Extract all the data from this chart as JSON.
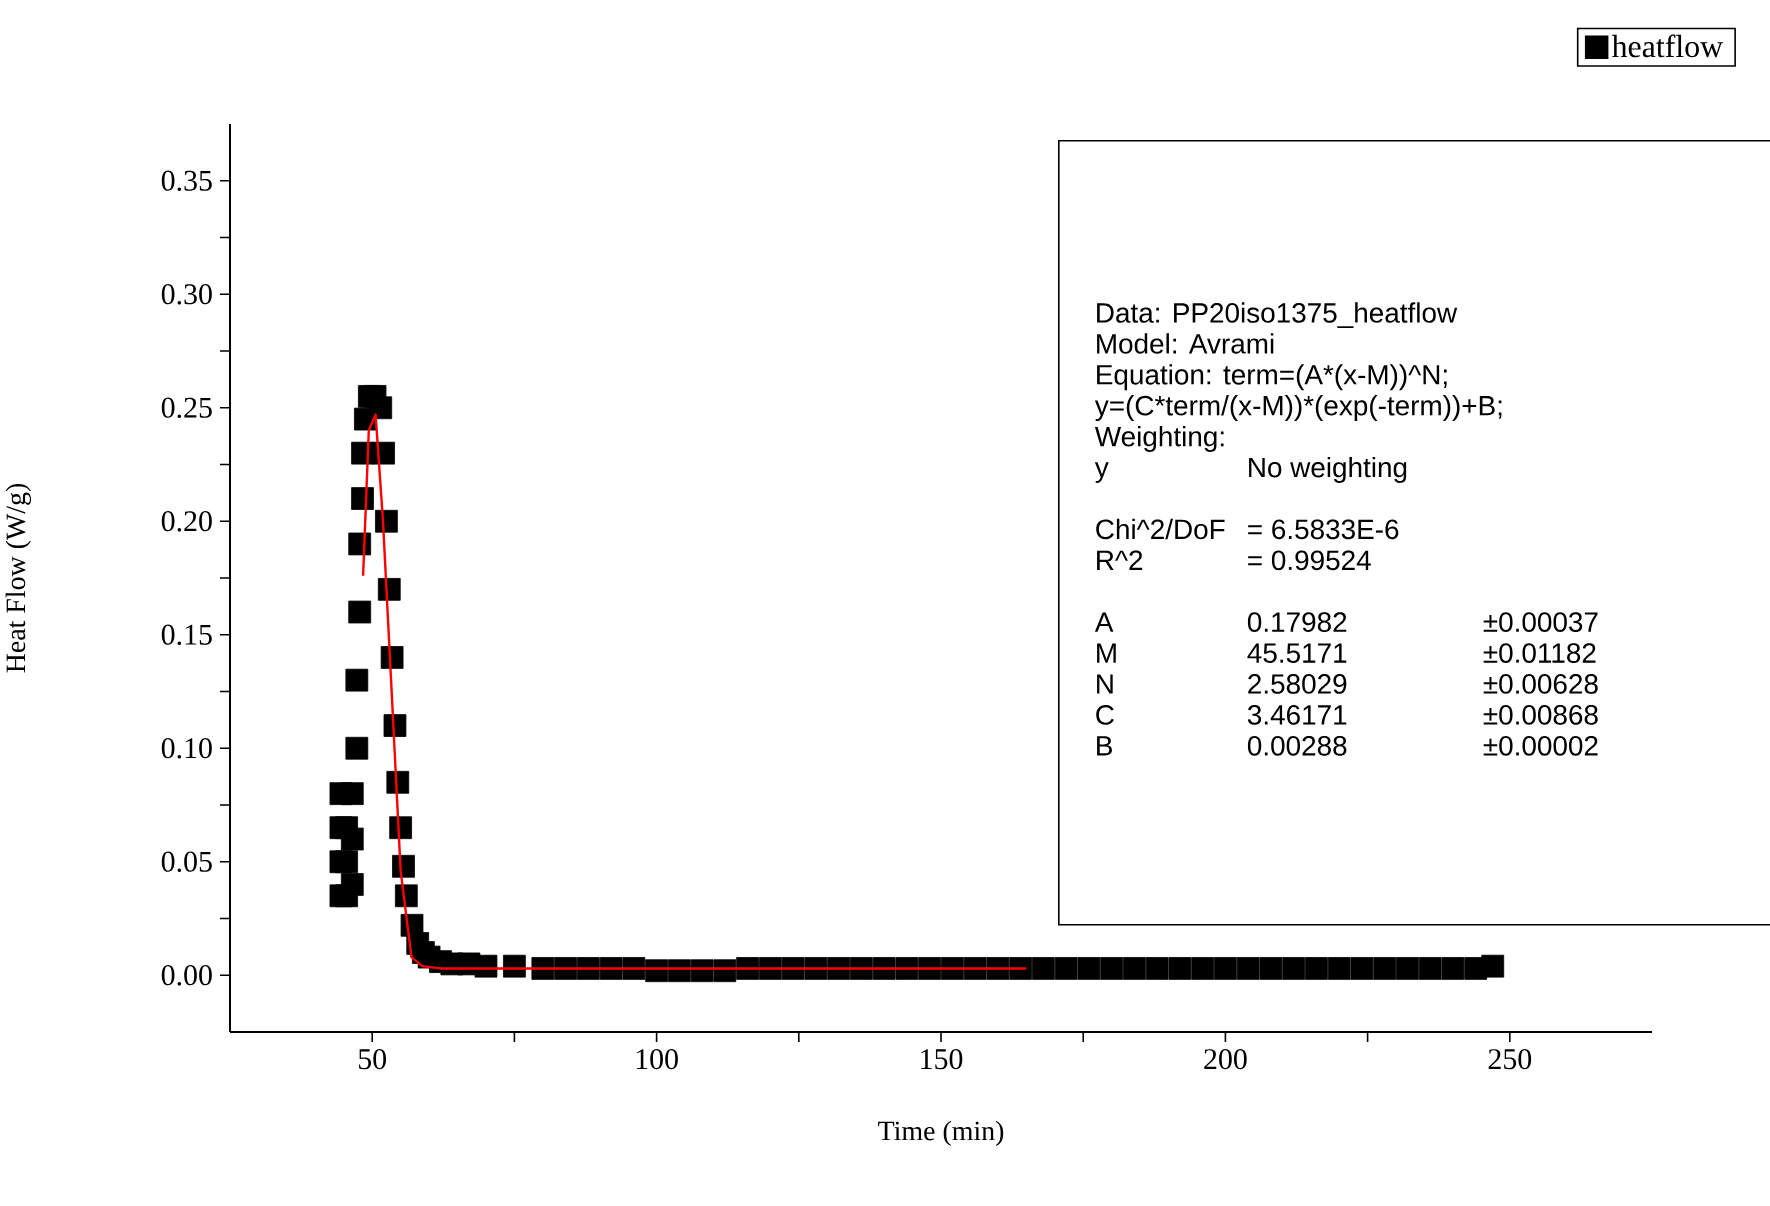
{
  "chart_data": {
    "type": "scatter",
    "xlabel": "Time (min)",
    "ylabel": "Heat Flow (W/g)",
    "xlim": [
      25,
      275
    ],
    "xticks": [
      50,
      {
        "value": 75,
        "label": null
      },
      100,
      {
        "value": 125,
        "label": null
      },
      150,
      {
        "value": 175,
        "label": null
      },
      200,
      {
        "value": 225,
        "label": null
      },
      250
    ],
    "ylim": [
      -0.025,
      0.375
    ],
    "yticks": [
      {
        "value": 0,
        "label": "0.00"
      },
      {
        "value": 0.025,
        "label": null
      },
      {
        "value": 0.05,
        "label": "0.05"
      },
      {
        "value": 0.075,
        "label": null
      },
      {
        "value": 0.1,
        "label": "0.10"
      },
      {
        "value": 0.125,
        "label": null
      },
      {
        "value": 0.15,
        "label": "0.15"
      },
      {
        "value": 0.175,
        "label": null
      },
      {
        "value": 0.2,
        "label": "0.20"
      },
      {
        "value": 0.225,
        "label": null
      },
      {
        "value": 0.25,
        "label": "0.25"
      },
      {
        "value": 0.275,
        "label": null
      },
      {
        "value": 0.3,
        "label": "0.30"
      },
      {
        "value": 0.325,
        "label": null
      },
      {
        "value": 0.35,
        "label": "0.35"
      }
    ],
    "legend": "top right",
    "marker": "square",
    "series": [
      {
        "name": "heatflow",
        "color": "#000000",
        "x": [
          44.5,
          44.5,
          44.5,
          44.5,
          45.5,
          45.5,
          45.5,
          46.5,
          46.5,
          46.5,
          47.3,
          47.3,
          47.8,
          47.8,
          48.3,
          48.3,
          48.8,
          49.5,
          50.5,
          51.5,
          52,
          52.5,
          53,
          53.5,
          54,
          54.5,
          55,
          55.5,
          56,
          57,
          58,
          59,
          60,
          62,
          64,
          67,
          70,
          75,
          80,
          84,
          88,
          92,
          96,
          100,
          104,
          108,
          112,
          116,
          120,
          124,
          128,
          132,
          136,
          140,
          144,
          148,
          152,
          156,
          160,
          164,
          168,
          172,
          176,
          180,
          184,
          188,
          192,
          196,
          200,
          204,
          208,
          212,
          216,
          220,
          224,
          228,
          232,
          236,
          240,
          244,
          247
        ],
        "values": [
          0.035,
          0.05,
          0.065,
          0.08,
          0.035,
          0.05,
          0.065,
          0.04,
          0.06,
          0.08,
          0.1,
          0.13,
          0.16,
          0.19,
          0.21,
          0.23,
          0.245,
          0.255,
          0.255,
          0.25,
          0.23,
          0.2,
          0.17,
          0.14,
          0.11,
          0.085,
          0.065,
          0.048,
          0.035,
          0.022,
          0.014,
          0.01,
          0.008,
          0.006,
          0.005,
          0.005,
          0.004,
          0.004,
          0.003,
          0.003,
          0.003,
          0.003,
          0.003,
          0.002,
          0.002,
          0.002,
          0.002,
          0.003,
          0.003,
          0.003,
          0.003,
          0.003,
          0.003,
          0.003,
          0.003,
          0.003,
          0.003,
          0.003,
          0.003,
          0.003,
          0.003,
          0.003,
          0.003,
          0.003,
          0.003,
          0.003,
          0.003,
          0.003,
          0.003,
          0.003,
          0.003,
          0.003,
          0.003,
          0.003,
          0.003,
          0.003,
          0.003,
          0.003,
          0.003,
          0.003,
          0.004
        ]
      },
      {
        "type": "line",
        "color": "#ff0000",
        "marker": "none",
        "x": [
          48.4,
          49.4,
          50.6,
          51.9,
          53.5,
          55,
          56.9,
          58.8,
          62,
          70,
          90,
          120,
          165
        ],
        "values": [
          0.176,
          0.24,
          0.247,
          0.2,
          0.121,
          0.046,
          0.008,
          0.004,
          0.003,
          0.003,
          0.003,
          0.003,
          0.003
        ]
      }
    ],
    "annotations": [
      "Data: PP20iso1375_heatflow",
      "Model: Avrami",
      "Equation: term=(A*(x-M))^N;",
      "y=(C*term/(x-M))*(exp(-term))+B;",
      "Weighting:",
      "y",
      "No weighting",
      "Chi^2/DoF",
      "= 6.5833E-6",
      "R^2",
      "=  0.99524",
      "A",
      "0.17982",
      "±0.00037",
      "M",
      "45.5171",
      "±0.01182",
      "N",
      "2.58029",
      "±0.00628",
      "C",
      "3.46171",
      "±0.00868",
      "B",
      "0.00288",
      "±0.00002"
    ]
  }
}
